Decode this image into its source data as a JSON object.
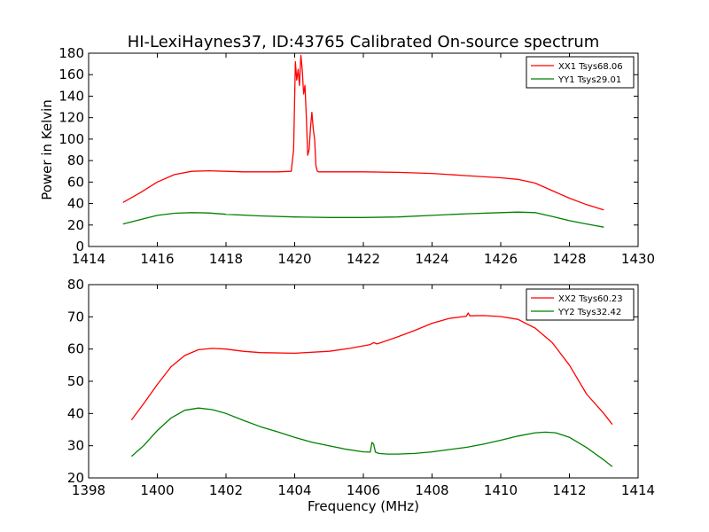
{
  "chart_data": [
    {
      "type": "line",
      "title": "HI-LexiHaynes37, ID:43765 Calibrated On-source spectrum",
      "xlabel": "",
      "ylabel": "Power in Kelvin",
      "xlim": [
        1414,
        1430
      ],
      "ylim": [
        0,
        180
      ],
      "xticks": [
        "1414",
        "1416",
        "1418",
        "1420",
        "1422",
        "1424",
        "1426",
        "1428",
        "1430"
      ],
      "yticks": [
        "0",
        "20",
        "40",
        "60",
        "80",
        "100",
        "120",
        "140",
        "160",
        "180"
      ],
      "legend_position": "top-right",
      "series": [
        {
          "name": "XX1 Tsys68.06",
          "color": "#ff0000",
          "x": [
            1415.0,
            1415.5,
            1416.0,
            1416.5,
            1417.0,
            1417.5,
            1418.0,
            1418.5,
            1419.0,
            1419.5,
            1419.9,
            1419.97,
            1420.02,
            1420.06,
            1420.1,
            1420.14,
            1420.18,
            1420.22,
            1420.26,
            1420.3,
            1420.34,
            1420.38,
            1420.42,
            1420.46,
            1420.5,
            1420.54,
            1420.58,
            1420.62,
            1420.66,
            1420.7,
            1421.0,
            1422.0,
            1423.0,
            1424.0,
            1425.0,
            1426.0,
            1426.5,
            1427.0,
            1427.5,
            1428.0,
            1428.5,
            1429.0
          ],
          "values": [
            41,
            50,
            60,
            67,
            70,
            70.5,
            70,
            69.5,
            69.5,
            69.5,
            70,
            90,
            172,
            155,
            165,
            150,
            178,
            165,
            142,
            150,
            120,
            85,
            90,
            110,
            125,
            110,
            100,
            75,
            70,
            69.5,
            69.5,
            69.5,
            69,
            68,
            66,
            64,
            62.5,
            59,
            52,
            45,
            39,
            34
          ]
        },
        {
          "name": "YY1 Tsys29.01",
          "color": "#008000",
          "x": [
            1415.0,
            1415.5,
            1416.0,
            1416.5,
            1417.0,
            1417.5,
            1418.0,
            1419.0,
            1420.0,
            1420.3,
            1421.0,
            1422.0,
            1423.0,
            1424.0,
            1425.0,
            1426.0,
            1426.5,
            1427.0,
            1427.5,
            1428.0,
            1428.5,
            1429.0
          ],
          "values": [
            21,
            25,
            29,
            31,
            31.5,
            31.2,
            30,
            28.5,
            27.5,
            27.3,
            27,
            27,
            27.5,
            29,
            30.5,
            31.5,
            32,
            31.5,
            28,
            24,
            21,
            18
          ]
        }
      ]
    },
    {
      "type": "line",
      "title": "",
      "xlabel": "Frequency (MHz)",
      "ylabel": "",
      "xlim": [
        1398,
        1414
      ],
      "ylim": [
        20,
        80
      ],
      "xticks": [
        "1398",
        "1400",
        "1402",
        "1404",
        "1406",
        "1408",
        "1410",
        "1412",
        "1414"
      ],
      "yticks": [
        "20",
        "30",
        "40",
        "50",
        "60",
        "70",
        "80"
      ],
      "legend_position": "top-right",
      "series": [
        {
          "name": "XX2 Tsys60.23",
          "color": "#ff0000",
          "x": [
            1399.25,
            1399.6,
            1400.0,
            1400.4,
            1400.8,
            1401.2,
            1401.6,
            1402.0,
            1402.5,
            1403.0,
            1404.0,
            1405.0,
            1405.6,
            1406.2,
            1406.3,
            1406.4,
            1407.0,
            1407.5,
            1408.0,
            1408.5,
            1409.0,
            1409.05,
            1409.1,
            1409.5,
            1410.0,
            1410.5,
            1411.0,
            1411.5,
            1412.0,
            1412.5,
            1413.0,
            1413.25
          ],
          "values": [
            38,
            43,
            49,
            54.5,
            58,
            59.8,
            60.2,
            60,
            59.3,
            58.9,
            58.7,
            59.3,
            60.2,
            61.4,
            62,
            61.6,
            63.8,
            65.8,
            68,
            69.5,
            70.2,
            71.2,
            70.3,
            70.4,
            70.1,
            69.2,
            66.5,
            62,
            55,
            46,
            40,
            36.6
          ]
        },
        {
          "name": "YY2 Tsys32.42",
          "color": "#008000",
          "x": [
            1399.25,
            1399.6,
            1400.0,
            1400.4,
            1400.8,
            1401.2,
            1401.6,
            1402.0,
            1402.5,
            1403.0,
            1403.5,
            1404.0,
            1404.5,
            1405.0,
            1405.5,
            1406.0,
            1406.2,
            1406.25,
            1406.3,
            1406.35,
            1406.45,
            1406.7,
            1407.0,
            1407.5,
            1408.0,
            1408.5,
            1409.0,
            1409.5,
            1410.0,
            1410.5,
            1411.0,
            1411.3,
            1411.6,
            1412.0,
            1412.5,
            1413.0,
            1413.25
          ],
          "values": [
            26.7,
            30,
            34.7,
            38.6,
            41,
            41.7,
            41.2,
            40,
            37.9,
            35.9,
            34.3,
            32.6,
            31.1,
            30,
            28.9,
            28.1,
            28,
            31,
            30.5,
            28,
            27.6,
            27.4,
            27.4,
            27.6,
            28.1,
            28.8,
            29.5,
            30.5,
            31.7,
            33,
            34,
            34.2,
            34,
            32.6,
            29.4,
            25.6,
            23.5
          ]
        }
      ]
    }
  ]
}
